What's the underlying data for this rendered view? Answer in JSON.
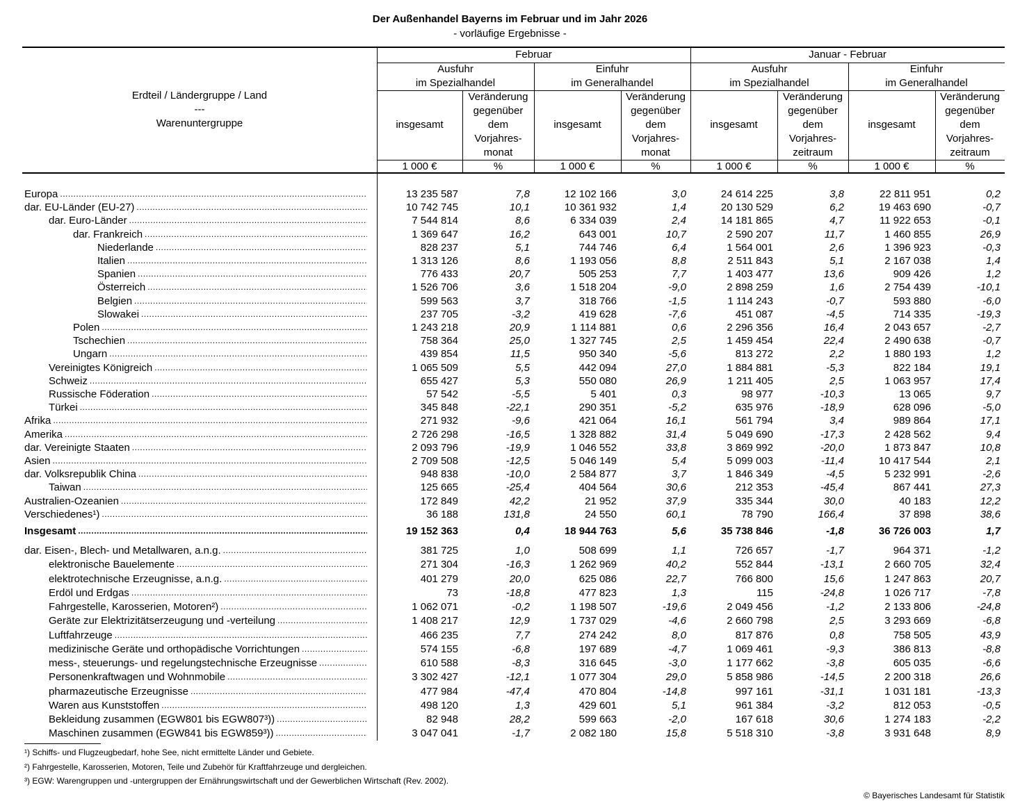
{
  "title": "Der Außenhandel Bayerns im Februar und im Jahr 2026",
  "subtitle": "- vorläufige Ergebnisse -",
  "header": {
    "row_label": [
      "Erdteil / Ländergruppe / Land",
      "---",
      "Warenuntergruppe"
    ],
    "periods": [
      "Februar",
      "Januar - Februar"
    ],
    "trade": [
      [
        "Ausfuhr",
        "im Spezialhandel"
      ],
      [
        "Einfuhr",
        "im Generalhandel"
      ],
      [
        "Ausfuhr",
        "im Spezialhandel"
      ],
      [
        "Einfuhr",
        "im Generalhandel"
      ]
    ],
    "measure_total": "insgesamt",
    "measure_change_month": [
      "Veränderung",
      "gegenüber",
      "dem",
      "Vorjahres-",
      "monat"
    ],
    "measure_change_period": [
      "Veränderung",
      "gegenüber",
      "dem",
      "Vorjahres-",
      "zeitraum"
    ],
    "unit_value": "1 000 €",
    "unit_pct": "%"
  },
  "rows": [
    {
      "label": "Europa",
      "level": 0,
      "v": [
        "13 235 587",
        "7,8",
        "12 102 166",
        "3,0",
        "24 614 225",
        "3,8",
        "22 811 951",
        "0,2"
      ]
    },
    {
      "label": "dar. EU-Länder (EU-27)",
      "level": 0,
      "v": [
        "10 742 745",
        "10,1",
        "10 361 932",
        "1,4",
        "20 130 529",
        "6,2",
        "19 463 690",
        "-0,7"
      ]
    },
    {
      "label": "dar.  Euro-Länder",
      "level": 1,
      "v": [
        "7 544 814",
        "8,6",
        "6 334 039",
        "2,4",
        "14 181 865",
        "4,7",
        "11 922 653",
        "-0,1"
      ]
    },
    {
      "label": "dar.  Frankreich",
      "level": 2,
      "v": [
        "1 369 647",
        "16,2",
        "643 001",
        "10,7",
        "2 590 207",
        "11,7",
        "1 460 855",
        "26,9"
      ]
    },
    {
      "label": "Niederlande",
      "level": 3,
      "v": [
        "828 237",
        "5,1",
        "744 746",
        "6,4",
        "1 564 001",
        "2,6",
        "1 396 923",
        "-0,3"
      ]
    },
    {
      "label": "Italien",
      "level": 3,
      "v": [
        "1 313 126",
        "8,6",
        "1 193 056",
        "8,8",
        "2 511 843",
        "5,1",
        "2 167 038",
        "1,4"
      ]
    },
    {
      "label": "Spanien",
      "level": 3,
      "v": [
        "776 433",
        "20,7",
        "505 253",
        "7,7",
        "1 403 477",
        "13,6",
        "909 426",
        "1,2"
      ]
    },
    {
      "label": "Österreich",
      "level": 3,
      "v": [
        "1 526 706",
        "3,6",
        "1 518 204",
        "-9,0",
        "2 898 259",
        "1,6",
        "2 754 439",
        "-10,1"
      ]
    },
    {
      "label": "Belgien",
      "level": 3,
      "v": [
        "599 563",
        "3,7",
        "318 766",
        "-1,5",
        "1 114 243",
        "-0,7",
        "593 880",
        "-6,0"
      ]
    },
    {
      "label": "Slowakei",
      "level": 3,
      "v": [
        "237 705",
        "-3,2",
        "419 628",
        "-7,6",
        "451 087",
        "-4,5",
        "714 335",
        "-19,3"
      ]
    },
    {
      "label": "Polen",
      "level": 2,
      "v": [
        "1 243 218",
        "20,9",
        "1 114 881",
        "0,6",
        "2 296 356",
        "16,4",
        "2 043 657",
        "-2,7"
      ]
    },
    {
      "label": "Tschechien",
      "level": 2,
      "v": [
        "758 364",
        "25,0",
        "1 327 745",
        "2,5",
        "1 459 454",
        "22,4",
        "2 490 638",
        "-0,7"
      ]
    },
    {
      "label": "Ungarn",
      "level": 2,
      "v": [
        "439 854",
        "11,5",
        "950 340",
        "-5,6",
        "813 272",
        "2,2",
        "1 880 193",
        "1,2"
      ]
    },
    {
      "label": "Vereinigtes Königreich",
      "level": 1,
      "v": [
        "1 065 509",
        "5,5",
        "442 094",
        "27,0",
        "1 884 881",
        "-5,3",
        "822 184",
        "19,1"
      ]
    },
    {
      "label": "Schweiz",
      "level": 1,
      "v": [
        "655 427",
        "5,3",
        "550 080",
        "26,9",
        "1 211 405",
        "2,5",
        "1 063 957",
        "17,4"
      ]
    },
    {
      "label": "Russische Föderation",
      "level": 1,
      "v": [
        "57 542",
        "-5,5",
        "5 401",
        "0,3",
        "98 977",
        "-10,3",
        "13 065",
        "9,7"
      ]
    },
    {
      "label": "Türkei",
      "level": 1,
      "v": [
        "345 848",
        "-22,1",
        "290 351",
        "-5,2",
        "635 976",
        "-18,9",
        "628 096",
        "-5,0"
      ]
    },
    {
      "label": "Afrika",
      "level": 0,
      "v": [
        "271 932",
        "-9,6",
        "421 064",
        "16,1",
        "561 794",
        "3,4",
        "989 864",
        "17,1"
      ]
    },
    {
      "label": "Amerika",
      "level": 0,
      "v": [
        "2 726 298",
        "-16,5",
        "1 328 882",
        "31,4",
        "5 049 690",
        "-17,3",
        "2 428 562",
        "9,4"
      ]
    },
    {
      "label": "dar. Vereinigte Staaten",
      "level": 0,
      "v": [
        "2 093 796",
        "-19,9",
        "1 046 552",
        "33,8",
        "3 869 992",
        "-20,0",
        "1 873 847",
        "10,8"
      ]
    },
    {
      "label": "Asien",
      "level": 0,
      "v": [
        "2 709 508",
        "-12,5",
        "5 046 149",
        "5,4",
        "5 099 003",
        "-11,4",
        "10 417 544",
        "2,1"
      ]
    },
    {
      "label": "dar. Volksrepublik China",
      "level": 0,
      "v": [
        "948 838",
        "-10,0",
        "2 584 877",
        "3,7",
        "1 846 349",
        "-4,5",
        "5 232 991",
        "-2,6"
      ]
    },
    {
      "label": "Taiwan",
      "level": 1,
      "v": [
        "125 665",
        "-25,4",
        "404 564",
        "30,6",
        "212 353",
        "-45,4",
        "867 441",
        "27,3"
      ]
    },
    {
      "label": "Australien-Ozeanien",
      "level": 0,
      "v": [
        "172 849",
        "42,2",
        "21 952",
        "37,9",
        "335 344",
        "30,0",
        "40 183",
        "12,2"
      ]
    },
    {
      "label": "Verschiedenes¹)",
      "level": 0,
      "v": [
        "36 188",
        "131,8",
        "24 550",
        "60,1",
        "78 790",
        "166,4",
        "37 898",
        "38,6"
      ]
    }
  ],
  "total": {
    "label": "Insgesamt",
    "v": [
      "19 152 363",
      "0,4",
      "18 944 763",
      "5,6",
      "35 738 846",
      "-1,8",
      "36 726 003",
      "1,7"
    ]
  },
  "goods": [
    {
      "label": "dar. Eisen-, Blech- und Metallwaren, a.n.g.",
      "level": 0,
      "v": [
        "381 725",
        "1,0",
        "508 699",
        "1,1",
        "726 657",
        "-1,7",
        "964 371",
        "-1,2"
      ]
    },
    {
      "label": "elektronische Bauelemente",
      "level": 1,
      "v": [
        "271 304",
        "-16,3",
        "1 262 969",
        "40,2",
        "552 844",
        "-13,1",
        "2 660 705",
        "32,4"
      ]
    },
    {
      "label": "elektrotechnische Erzeugnisse, a.n.g.",
      "level": 1,
      "v": [
        "401 279",
        "20,0",
        "625 086",
        "22,7",
        "766 800",
        "15,6",
        "1 247 863",
        "20,7"
      ]
    },
    {
      "label": "Erdöl und Erdgas",
      "level": 1,
      "v": [
        "73",
        "-18,8",
        "477 823",
        "1,3",
        "115",
        "-24,8",
        "1 026 717",
        "-7,8"
      ]
    },
    {
      "label": "Fahrgestelle, Karosserien, Motoren²)",
      "level": 1,
      "v": [
        "1 062 071",
        "-0,2",
        "1 198 507",
        "-19,6",
        "2 049 456",
        "-1,2",
        "2 133 806",
        "-24,8"
      ]
    },
    {
      "label": "Geräte zur Elektrizitätserzeugung und -verteilung",
      "level": 1,
      "v": [
        "1 408 217",
        "12,9",
        "1 737 029",
        "-4,6",
        "2 660 798",
        "2,5",
        "3 293 669",
        "-6,8"
      ]
    },
    {
      "label": "Luftfahrzeuge",
      "level": 1,
      "v": [
        "466 235",
        "7,7",
        "274 242",
        "8,0",
        "817 876",
        "0,8",
        "758 505",
        "43,9"
      ]
    },
    {
      "label": "medizinische Geräte und orthopädische Vorrichtungen",
      "level": 1,
      "v": [
        "574 155",
        "-6,8",
        "197 689",
        "-4,7",
        "1 069 461",
        "-9,3",
        "386 813",
        "-8,8"
      ]
    },
    {
      "label": "mess-, steuerungs- und regelungstechnische Erzeugnisse",
      "level": 1,
      "v": [
        "610 588",
        "-8,3",
        "316 645",
        "-3,0",
        "1 177 662",
        "-3,8",
        "605 035",
        "-6,6"
      ]
    },
    {
      "label": "Personenkraftwagen und Wohnmobile",
      "level": 1,
      "v": [
        "3 302 427",
        "-12,1",
        "1 077 304",
        "29,0",
        "5 858 986",
        "-14,5",
        "2 200 318",
        "26,6"
      ]
    },
    {
      "label": "pharmazeutische Erzeugnisse",
      "level": 1,
      "v": [
        "477 984",
        "-47,4",
        "470 804",
        "-14,8",
        "997 161",
        "-31,1",
        "1 031 181",
        "-13,3"
      ]
    },
    {
      "label": "Waren aus Kunststoffen",
      "level": 1,
      "v": [
        "498 120",
        "1,3",
        "429 601",
        "5,1",
        "961 384",
        "-3,2",
        "812 053",
        "-0,5"
      ]
    },
    {
      "label": "Bekleidung zusammen (EGW801 bis EGW807³))",
      "level": 1,
      "v": [
        "82 948",
        "28,2",
        "599 663",
        "-2,0",
        "167 618",
        "30,6",
        "1 274 183",
        "-2,2"
      ]
    },
    {
      "label": "Maschinen zusammen (EGW841 bis EGW859³))",
      "level": 1,
      "v": [
        "3 047 041",
        "-1,7",
        "2 082 180",
        "15,8",
        "5 518 310",
        "-3,8",
        "3 931 648",
        "8,9"
      ]
    }
  ],
  "footnotes": [
    "¹) Schiffs- und Flugzeugbedarf, hohe See, nicht ermittelte Länder und Gebiete.",
    "²) Fahrgestelle, Karosserien, Motoren, Teile und Zubehör für Kraftfahrzeuge und dergleichen.",
    "³) EGW: Warengruppen und -untergruppen der Ernährungswirtschaft und der Gewerblichen Wirtschaft (Rev. 2002)."
  ],
  "copyright": "© Bayerisches Landesamt für Statistik"
}
